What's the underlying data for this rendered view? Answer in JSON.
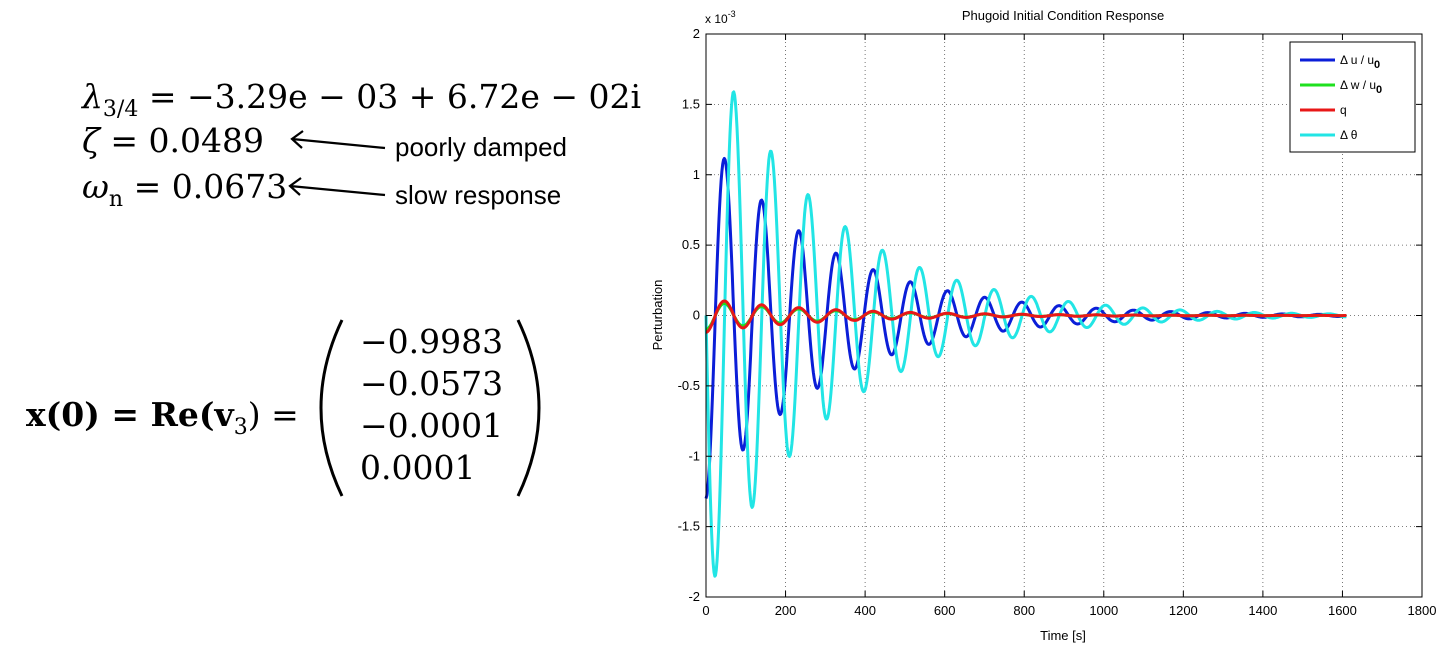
{
  "left_panel": {
    "eigen_lhs": "λ",
    "eigen_sub": "3/4",
    "eigen_rhs": " = −3.29e − 03 + 6.72e − 02i",
    "zeta_symbol": "ζ",
    "zeta_value": " = 0.0489",
    "zeta_note": "poorly damped",
    "omega_symbol": "ω",
    "omega_sub": "n",
    "omega_value": " = 0.0673",
    "omega_note": "slow response",
    "x0_label": "x(0) = Re(v",
    "x0_sub": "3",
    "x0_close": ") =",
    "vector": [
      "−0.9983",
      "−0.0573",
      "−0.0001",
      "0.0001"
    ]
  },
  "chart_data": {
    "type": "line",
    "title": "Phugoid Initial Condition Response",
    "xlabel": "Time [s]",
    "ylabel": "Perturbation",
    "y_exponent_label": "x 10",
    "y_exponent_power": "-3",
    "xlim": [
      0,
      1800
    ],
    "ylim": [
      -2,
      2
    ],
    "xticks": [
      0,
      200,
      400,
      600,
      800,
      1000,
      1200,
      1400,
      1600,
      1800
    ],
    "yticks": [
      -2,
      -1.5,
      -1,
      -0.5,
      0,
      0.5,
      1,
      1.5,
      2
    ],
    "grid": true,
    "legend_position": "top-right",
    "t_end": 1610,
    "series": [
      {
        "name": "Δ u / u",
        "name_sub": "0",
        "color": "#0b1ed8",
        "amplitude": 1.3,
        "damping": 0.00329,
        "omega": 0.0672,
        "phase": 3.1416,
        "notes": "dominant oscillation; starts near -1.3e-3 with a peak near 1.1e-3 at t=45"
      },
      {
        "name": "Δ w / u",
        "name_sub": "0",
        "color": "#1fe01f",
        "amplitude": 0.1,
        "damping": 0.00329,
        "omega": 0.0672,
        "phase": 3.1416
      },
      {
        "name": "q",
        "name_sub": "",
        "color": "#e81818",
        "amplitude": 0.12,
        "damping": 0.00329,
        "omega": 0.0672,
        "phase": 3.1416
      },
      {
        "name": "Δ θ",
        "name_sub": "",
        "color": "#22e5e5",
        "amplitude": 2.0,
        "damping": 0.00329,
        "omega": 0.0672,
        "phase": 1.5708,
        "notes": "starts near 0, minimum near -1.93e-3 at t=25, peak near 1.65e-3 at t=70"
      }
    ]
  }
}
